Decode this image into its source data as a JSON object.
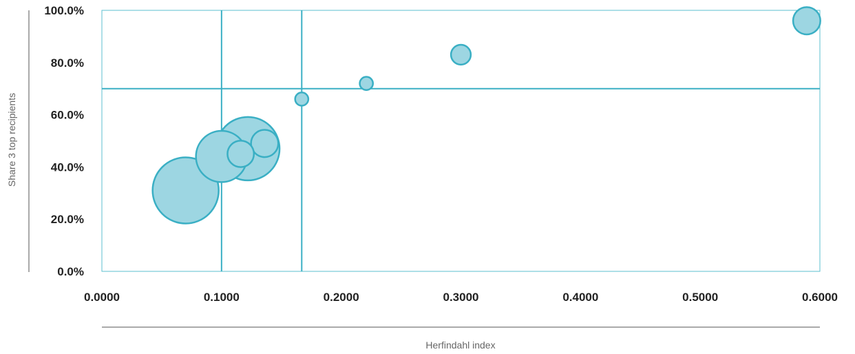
{
  "chart_data": {
    "type": "scatter",
    "subtype": "bubble",
    "xlabel": "Herfindahl index",
    "ylabel": "Share 3 top recipients",
    "xlim": [
      0,
      0.6
    ],
    "ylim": [
      0,
      1.0
    ],
    "x_ticks": [
      "0.0000",
      "0.1000",
      "0.2000",
      "0.3000",
      "0.4000",
      "0.5000",
      "0.6000"
    ],
    "y_ticks": [
      "0.0%",
      "20.0%",
      "40.0%",
      "60.0%",
      "80.0%",
      "100.0%"
    ],
    "x_tick_values": [
      0,
      0.1,
      0.2,
      0.3,
      0.4,
      0.5,
      0.6
    ],
    "y_tick_values": [
      0,
      0.2,
      0.4,
      0.6,
      0.8,
      1.0
    ],
    "reference_lines": {
      "x": [
        0.1,
        0.167
      ],
      "y": [
        0.7
      ]
    },
    "grid": false,
    "legend": "none",
    "colors": {
      "bubble_fill": "#9dd6e2",
      "bubble_stroke": "#3aafc4",
      "frame": "#5bbfcf",
      "reference": "#3aafc4"
    },
    "points": [
      {
        "x": 0.07,
        "y": 0.31,
        "size": 1.0
      },
      {
        "x": 0.122,
        "y": 0.47,
        "size": 0.92
      },
      {
        "x": 0.1,
        "y": 0.44,
        "size": 0.6
      },
      {
        "x": 0.136,
        "y": 0.49,
        "size": 0.17
      },
      {
        "x": 0.116,
        "y": 0.45,
        "size": 0.16
      },
      {
        "x": 0.167,
        "y": 0.66,
        "size": 0.04
      },
      {
        "x": 0.221,
        "y": 0.72,
        "size": 0.04
      },
      {
        "x": 0.3,
        "y": 0.83,
        "size": 0.09
      },
      {
        "x": 0.589,
        "y": 0.96,
        "size": 0.17
      }
    ]
  }
}
